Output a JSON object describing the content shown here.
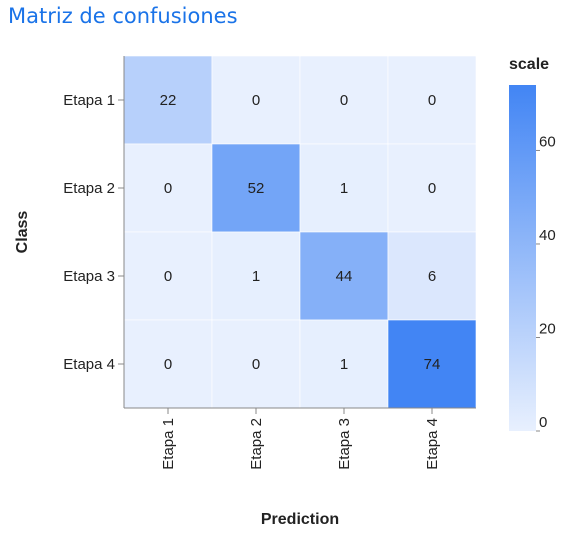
{
  "page": {
    "title": "Matriz de confusiones"
  },
  "chart_data": {
    "type": "heatmap",
    "title": "",
    "xlabel": "Prediction",
    "ylabel": "Class",
    "x_categories": [
      "Etapa 1",
      "Etapa 2",
      "Etapa 3",
      "Etapa 4"
    ],
    "y_categories": [
      "Etapa 1",
      "Etapa 2",
      "Etapa 3",
      "Etapa 4"
    ],
    "values": [
      [
        22,
        0,
        0,
        0
      ],
      [
        0,
        52,
        1,
        0
      ],
      [
        0,
        1,
        44,
        6
      ],
      [
        0,
        0,
        1,
        74
      ]
    ],
    "legend": {
      "title": "scale",
      "ticks": [
        0,
        20,
        40,
        60
      ],
      "range": [
        0,
        74
      ],
      "color_low": "#e8f0fe",
      "color_high": "#4285f4"
    }
  }
}
